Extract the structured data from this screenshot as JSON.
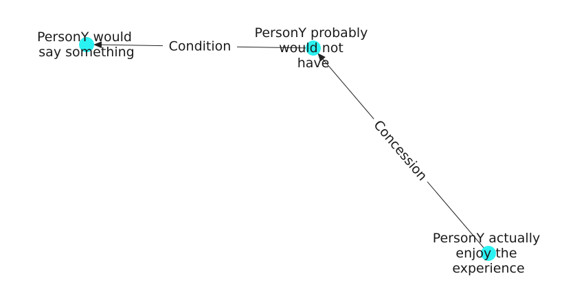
{
  "colors": {
    "node_fill": "#2bf2f2",
    "edge_stroke": "#222222",
    "label_text": "#1a1a1a",
    "background": "#ffffff"
  },
  "nodes": [
    {
      "id": "n1",
      "label_lines": [
        "PersonY would",
        "say something"
      ]
    },
    {
      "id": "n2",
      "label_lines": [
        "PersonY probably",
        "would not",
        "have"
      ]
    },
    {
      "id": "n3",
      "label_lines": [
        "PersonY actually",
        "enjoy the",
        "experience"
      ]
    }
  ],
  "edges": [
    {
      "id": "e1",
      "source": "n2",
      "target": "n1",
      "label": "Condition"
    },
    {
      "id": "e2",
      "source": "n3",
      "target": "n2",
      "label": "Concession"
    }
  ]
}
